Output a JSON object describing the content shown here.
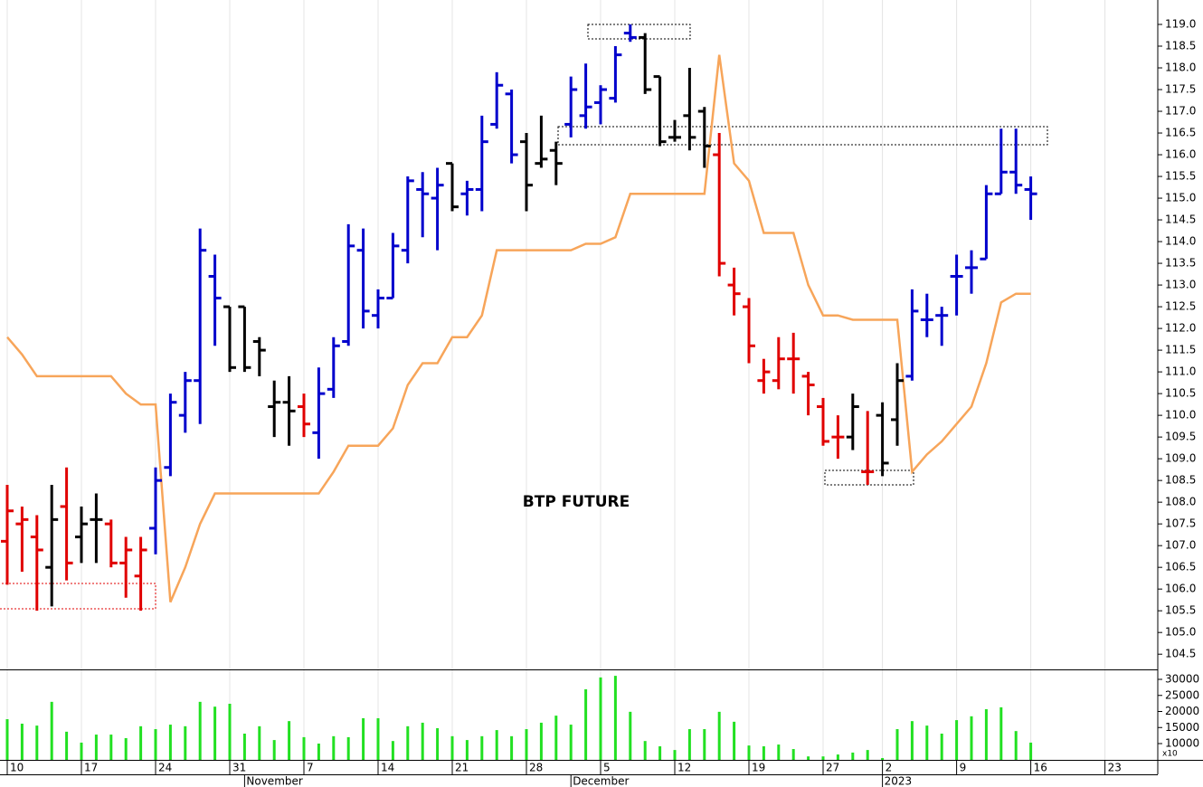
{
  "chart_data": {
    "type": "ohlc",
    "title": "BTP FUTURE",
    "categories": [
      "10",
      null,
      null,
      null,
      null,
      "17",
      null,
      null,
      null,
      null,
      "24",
      null,
      null,
      null,
      null,
      "31",
      null,
      null,
      null,
      null,
      "7",
      null,
      null,
      null,
      null,
      "14",
      null,
      null,
      null,
      null,
      "21",
      null,
      null,
      null,
      null,
      "28",
      null,
      null,
      null,
      null,
      "5",
      null,
      null,
      null,
      null,
      "12",
      null,
      null,
      null,
      null,
      "19",
      null,
      null,
      null,
      null,
      "27",
      null,
      null,
      null,
      "2",
      null,
      null,
      null,
      null,
      "9",
      null,
      null,
      null,
      null,
      "16",
      null,
      null,
      null,
      null,
      "23",
      null,
      null,
      null
    ],
    "month_labels": [
      {
        "value": 16,
        "label": "November"
      },
      {
        "value": 38,
        "label": "December"
      },
      {
        "value": 59,
        "label": "2023"
      }
    ],
    "open": [
      107.1,
      107.5,
      107.2,
      106.5,
      107.9,
      107.2,
      107.6,
      107.5,
      106.6,
      106.3,
      107.4,
      108.8,
      110.0,
      110.8,
      113.2,
      112.5,
      112.5,
      111.7,
      110.2,
      110.3,
      110.2,
      109.6,
      110.6,
      111.7,
      113.8,
      112.3,
      112.7,
      113.8,
      115.2,
      115.0,
      115.8,
      115.1,
      115.2,
      116.7,
      117.4,
      116.3,
      115.8,
      116.1,
      116.7,
      116.9,
      117.2,
      117.3,
      118.8,
      118.7,
      117.8,
      116.4,
      116.9,
      117.0,
      116.0,
      113.0,
      112.5,
      110.8,
      110.8,
      111.3,
      110.9,
      110.2,
      109.5,
      109.5,
      108.7,
      110.0,
      109.9,
      110.9,
      112.2,
      112.3,
      113.2,
      113.4,
      113.6,
      115.1,
      115.6,
      115.2,
      null,
      null,
      null,
      null,
      null,
      null,
      null,
      null
    ],
    "high": [
      108.4,
      107.9,
      107.7,
      108.4,
      108.8,
      107.9,
      108.2,
      107.6,
      107.2,
      107.2,
      108.8,
      110.5,
      111.0,
      114.3,
      113.7,
      112.5,
      112.5,
      111.8,
      110.8,
      110.9,
      110.5,
      111.1,
      111.8,
      114.4,
      114.3,
      112.9,
      114.2,
      115.5,
      115.6,
      115.7,
      115.8,
      115.4,
      116.9,
      117.9,
      117.5,
      116.5,
      116.9,
      116.3,
      117.8,
      118.1,
      117.6,
      118.5,
      119.0,
      118.8,
      117.8,
      116.8,
      118.0,
      117.1,
      116.5,
      113.4,
      112.7,
      111.3,
      111.8,
      111.9,
      111.0,
      110.4,
      110.0,
      110.5,
      110.1,
      110.3,
      111.2,
      112.9,
      112.8,
      112.5,
      113.7,
      113.8,
      115.3,
      116.6,
      116.6,
      115.5,
      null,
      null,
      null,
      null,
      null,
      null,
      null,
      null
    ],
    "low": [
      106.1,
      106.4,
      105.5,
      105.6,
      106.2,
      106.6,
      106.6,
      106.5,
      105.8,
      105.5,
      106.8,
      108.6,
      109.6,
      109.8,
      111.6,
      111.0,
      111.0,
      110.9,
      109.5,
      109.3,
      109.5,
      109.0,
      110.4,
      111.6,
      112.0,
      112.0,
      112.7,
      113.5,
      114.1,
      113.8,
      114.7,
      114.6,
      114.7,
      116.6,
      115.8,
      114.7,
      115.7,
      115.3,
      116.4,
      116.6,
      116.7,
      117.2,
      118.6,
      117.4,
      116.2,
      116.3,
      116.1,
      115.7,
      113.2,
      112.3,
      111.2,
      110.5,
      110.6,
      110.5,
      110.0,
      109.3,
      109.0,
      109.2,
      108.4,
      108.6,
      109.3,
      110.8,
      111.8,
      111.6,
      112.3,
      112.8,
      113.6,
      115.1,
      115.1,
      114.5,
      null,
      null,
      null,
      null,
      null,
      null,
      null,
      null
    ],
    "close": [
      107.8,
      107.6,
      106.9,
      107.6,
      106.6,
      107.5,
      107.6,
      106.6,
      106.9,
      106.9,
      108.5,
      110.3,
      110.8,
      113.8,
      112.7,
      111.1,
      111.1,
      111.5,
      110.3,
      110.1,
      109.8,
      110.5,
      111.6,
      113.9,
      112.4,
      112.7,
      113.9,
      115.4,
      115.1,
      115.3,
      114.8,
      115.2,
      116.3,
      117.6,
      116.0,
      115.3,
      115.9,
      115.8,
      117.5,
      117.1,
      117.5,
      118.3,
      118.7,
      117.5,
      116.3,
      116.4,
      116.4,
      116.2,
      113.5,
      112.8,
      111.6,
      111.0,
      111.3,
      111.3,
      110.7,
      109.4,
      109.5,
      110.2,
      108.7,
      108.9,
      110.8,
      112.4,
      112.2,
      112.3,
      113.2,
      113.4,
      115.1,
      115.6,
      115.3,
      115.1,
      null,
      null,
      null,
      null,
      null,
      null,
      null,
      null
    ],
    "bar_colors": [
      "#e00000",
      "#e00000",
      "#e00000",
      "#000000",
      "#e00000",
      "#000000",
      "#000000",
      "#e00000",
      "#e00000",
      "#e00000",
      "#0000cc",
      "#0000cc",
      "#0000cc",
      "#0000cc",
      "#0000cc",
      "#000000",
      "#000000",
      "#000000",
      "#000000",
      "#000000",
      "#e00000",
      "#0000cc",
      "#0000cc",
      "#0000cc",
      "#0000cc",
      "#0000cc",
      "#0000cc",
      "#0000cc",
      "#0000cc",
      "#0000cc",
      "#000000",
      "#0000cc",
      "#0000cc",
      "#0000cc",
      "#0000cc",
      "#000000",
      "#000000",
      "#000000",
      "#0000cc",
      "#0000cc",
      "#0000cc",
      "#0000cc",
      "#0000cc",
      "#000000",
      "#000000",
      "#000000",
      "#000000",
      "#000000",
      "#e00000",
      "#e00000",
      "#e00000",
      "#e00000",
      "#e00000",
      "#e00000",
      "#e00000",
      "#e00000",
      "#e00000",
      "#000000",
      "#e00000",
      "#000000",
      "#000000",
      "#0000cc",
      "#0000cc",
      "#0000cc",
      "#0000cc",
      "#0000cc",
      "#0000cc",
      "#0000cc",
      "#0000cc",
      "#0000cc",
      null,
      null,
      null,
      null,
      null,
      null,
      null,
      null
    ],
    "line": {
      "color": "#f7a55a",
      "values": [
        111.8,
        111.4,
        110.9,
        110.9,
        110.9,
        110.9,
        110.9,
        110.9,
        110.5,
        110.25,
        110.25,
        105.7,
        106.5,
        107.5,
        108.2,
        108.2,
        108.2,
        108.2,
        108.2,
        108.2,
        108.2,
        108.2,
        108.7,
        109.3,
        109.3,
        109.3,
        109.7,
        110.7,
        111.2,
        111.2,
        111.8,
        111.8,
        112.3,
        113.8,
        113.8,
        113.8,
        113.8,
        113.8,
        113.8,
        113.95,
        113.95,
        114.1,
        115.1,
        115.1,
        115.1,
        115.1,
        115.1,
        115.1,
        118.3,
        115.8,
        115.4,
        114.2,
        114.2,
        114.2,
        113.0,
        112.3,
        112.3,
        112.2,
        112.2,
        112.2,
        112.2,
        108.7,
        109.1,
        109.4,
        109.8,
        110.2,
        111.2,
        112.6,
        112.8,
        112.8,
        null,
        null,
        null,
        null,
        null,
        null,
        null,
        null
      ]
    },
    "ylim": [
      104.15,
      119.5625
    ],
    "yticks": [
      104.5,
      {
        "value": 105,
        "label": "105.0"
      },
      105.5,
      {
        "value": 106,
        "label": "106.0"
      },
      106.5,
      {
        "value": 107,
        "label": "107.0"
      },
      107.5,
      {
        "value": 108,
        "label": "108.0"
      },
      108.5,
      {
        "value": 109,
        "label": "109.0"
      },
      109.5,
      {
        "value": 110,
        "label": "110.0"
      },
      110.5,
      {
        "value": 111,
        "label": "111.0"
      },
      111.5,
      {
        "value": 112,
        "label": "112.0"
      },
      112.5,
      {
        "value": 113,
        "label": "113.0"
      },
      113.5,
      {
        "value": 114,
        "label": "114.0"
      },
      114.5,
      {
        "value": 115,
        "label": "115.0"
      },
      115.5,
      {
        "value": 116,
        "label": "116.0"
      },
      116.5,
      {
        "value": 117,
        "label": "117.0"
      },
      117.5,
      {
        "value": 118,
        "label": "118.0"
      },
      118.5,
      {
        "value": 119,
        "label": "119.0"
      }
    ],
    "volume": {
      "color": "#22e022",
      "scale_label": "x10",
      "values": [
        17600,
        16200,
        15600,
        23000,
        13700,
        10300,
        12800,
        12800,
        11700,
        15400,
        14500,
        15900,
        15400,
        23000,
        21500,
        22400,
        13100,
        15400,
        11100,
        17000,
        12000,
        10000,
        12300,
        12000,
        17900,
        17900,
        10800,
        15400,
        16500,
        14800,
        12300,
        11100,
        12300,
        14200,
        12300,
        14500,
        16500,
        18700,
        15900,
        26900,
        30600,
        31100,
        19900,
        10800,
        9150,
        8000,
        14500,
        14500,
        19900,
        16800,
        9400,
        9150,
        9700,
        8300,
        6000,
        6000,
        6600,
        7200,
        8000,
        5500,
        14500,
        17000,
        15600,
        13100,
        17300,
        18500,
        20700,
        21300,
        13900,
        10300,
        null,
        null,
        null,
        null,
        null,
        null,
        null,
        null
      ],
      "ylim": [
        4930,
        32820
      ],
      "yticks": [
        10000,
        15000,
        20000,
        25000,
        30000
      ]
    }
  }
}
